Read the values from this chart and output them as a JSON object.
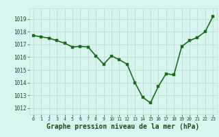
{
  "x": [
    0,
    1,
    2,
    3,
    4,
    5,
    6,
    7,
    8,
    9,
    10,
    11,
    12,
    13,
    14,
    15,
    16,
    17,
    18,
    19,
    20,
    21,
    22,
    23
  ],
  "y": [
    1017.7,
    1017.6,
    1017.5,
    1017.3,
    1017.1,
    1016.8,
    1016.85,
    1016.8,
    1016.1,
    1015.45,
    1016.1,
    1015.8,
    1015.45,
    1014.0,
    1012.85,
    1012.4,
    1013.7,
    1014.7,
    1014.6,
    1016.85,
    1017.3,
    1017.55,
    1018.0,
    1019.2
  ],
  "line_color": "#1a6b1a",
  "marker_color": "#1a6b1a",
  "bg_color": "#d8f5f0",
  "grid_color": "#b8ddd5",
  "xlabel": "Graphe pression niveau de la mer (hPa)",
  "xlabel_color": "#1a4a1a",
  "tick_color": "#1a4a1a",
  "ylim_min": 1011.5,
  "ylim_max": 1019.85,
  "xlim_min": -0.5,
  "xlim_max": 23.5,
  "yticks": [
    1012,
    1013,
    1014,
    1015,
    1016,
    1017,
    1018,
    1019
  ],
  "xticks": [
    0,
    1,
    2,
    3,
    4,
    5,
    6,
    7,
    8,
    9,
    10,
    11,
    12,
    13,
    14,
    15,
    16,
    17,
    18,
    19,
    20,
    21,
    22,
    23
  ],
  "marker_size": 2.5,
  "line_width": 1.2,
  "tick_fontsize": 5.5,
  "xlabel_fontsize": 7.0
}
